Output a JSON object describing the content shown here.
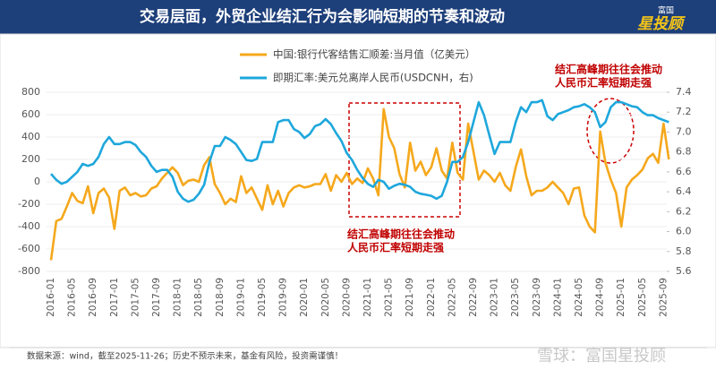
{
  "header": {
    "title": "交易层面，外贸企业结汇行为会影响短期的节奏和波动",
    "logo_top": "富国",
    "logo_main": "星投顾"
  },
  "chart_data": {
    "type": "line",
    "categories": [
      "2016-01",
      null,
      null,
      null,
      "2016-05",
      null,
      null,
      null,
      "2016-09",
      null,
      null,
      null,
      "2017-01",
      null,
      null,
      null,
      "2017-05",
      null,
      null,
      null,
      "2017-09",
      null,
      null,
      null,
      "2018-01",
      null,
      null,
      null,
      "2018-05",
      null,
      null,
      null,
      "2018-09",
      null,
      null,
      null,
      "2019-01",
      null,
      null,
      null,
      "2019-05",
      null,
      null,
      null,
      "2019-09",
      null,
      null,
      null,
      "2020-01",
      null,
      null,
      null,
      "2020-05",
      null,
      null,
      null,
      "2020-09",
      null,
      null,
      null,
      "2021-01",
      null,
      null,
      null,
      "2021-05",
      null,
      null,
      null,
      "2021-09",
      null,
      null,
      null,
      "2022-01",
      null,
      null,
      null,
      "2022-05",
      null,
      null,
      null,
      "2022-09",
      null,
      null,
      null,
      "2023-01",
      null,
      null,
      null,
      "2023-05",
      null,
      null,
      null,
      "2023-09",
      null,
      null,
      null,
      "2024-01",
      null,
      null,
      null,
      "2024-05",
      null,
      null,
      null,
      "2024-09",
      null,
      null,
      null,
      "2025-01",
      null,
      null,
      null,
      "2025-05",
      null,
      null,
      null,
      "2025-09",
      null
    ],
    "series": [
      {
        "name": "中国:银行代客结售汇顺差:当月值（亿美元）",
        "color": "#f5a81c",
        "axis": "y",
        "values": [
          -700,
          -350,
          -330,
          -220,
          -100,
          -170,
          -190,
          -40,
          -280,
          -100,
          -60,
          -140,
          -420,
          -80,
          -50,
          -120,
          -100,
          -130,
          -120,
          -60,
          -40,
          30,
          80,
          130,
          80,
          -30,
          10,
          20,
          0,
          150,
          220,
          -20,
          -100,
          -200,
          -150,
          -180,
          50,
          -100,
          -50,
          -150,
          -250,
          -30,
          -200,
          -80,
          -220,
          -100,
          -50,
          -30,
          -50,
          -40,
          -20,
          -20,
          70,
          -80,
          60,
          0,
          80,
          -20,
          30,
          -10,
          120,
          30,
          -120,
          650,
          400,
          300,
          70,
          -50,
          350,
          100,
          180,
          60,
          130,
          300,
          100,
          30,
          350,
          80,
          20,
          520,
          270,
          20,
          100,
          60,
          0,
          80,
          -30,
          -80,
          130,
          290,
          50,
          -120,
          -80,
          -80,
          -50,
          0,
          -50,
          -100,
          -200,
          -60,
          -50,
          -300,
          -400,
          -450,
          450,
          170,
          20,
          -100,
          -400,
          -50,
          20,
          60,
          110,
          210,
          250,
          170,
          520,
          200
        ]
      },
      {
        "name": "即期汇率:美元兑离岸人民币(USDCNH，右)",
        "color": "#1ea7dc",
        "axis": "y2",
        "values": [
          6.58,
          6.52,
          6.48,
          6.5,
          6.55,
          6.6,
          6.68,
          6.66,
          6.68,
          6.75,
          6.88,
          6.95,
          6.88,
          6.88,
          6.9,
          6.9,
          6.87,
          6.8,
          6.75,
          6.66,
          6.6,
          6.62,
          6.62,
          6.55,
          6.4,
          6.33,
          6.3,
          6.32,
          6.38,
          6.47,
          6.7,
          6.86,
          6.86,
          6.95,
          6.92,
          6.88,
          6.8,
          6.72,
          6.71,
          6.73,
          6.9,
          6.9,
          6.9,
          7.1,
          7.12,
          7.12,
          7.03,
          7,
          6.94,
          6.98,
          7.06,
          7.08,
          7.13,
          7.08,
          6.99,
          6.91,
          6.79,
          6.72,
          6.62,
          6.54,
          6.48,
          6.45,
          6.52,
          6.5,
          6.43,
          6.46,
          6.48,
          6.47,
          6.45,
          6.4,
          6.38,
          6.37,
          6.36,
          6.33,
          6.36,
          6.5,
          6.7,
          6.7,
          6.75,
          6.9,
          7.1,
          7.3,
          7.17,
          6.97,
          6.78,
          6.9,
          6.9,
          6.9,
          7.1,
          7.25,
          7.2,
          7.3,
          7.3,
          7.32,
          7.16,
          7.12,
          7.18,
          7.2,
          7.22,
          7.25,
          7.26,
          7.28,
          7.25,
          7.2,
          7.05,
          7.1,
          7.25,
          7.3,
          7.3,
          7.28,
          7.26,
          7.25,
          7.2,
          7.17,
          7.17,
          7.14,
          7.12,
          7.1
        ]
      }
    ],
    "ylim": [
      -800,
      800
    ],
    "yticks": [
      -800,
      -600,
      -400,
      -200,
      0,
      200,
      400,
      600,
      800
    ],
    "y2lim": [
      5.6,
      7.4
    ],
    "y2ticks": [
      5.6,
      5.8,
      {
        "value": 6,
        "label": "6.0"
      },
      6.2,
      6.4,
      6.6,
      6.8,
      {
        "value": 7,
        "label": "7.0"
      },
      7.2,
      7.4
    ],
    "grid": true,
    "annotations": [
      [
        "结汇高峰期往往会推动",
        "人民币汇率短期走强"
      ],
      [
        "结汇高峰期往往会推动",
        "人民币汇率短期走强"
      ]
    ],
    "source": "数据来源：wind，截至2025-11-26；历史不预示未来，基金有风险，投资需谨慎！",
    "watermark": "雪球：富国星投顾"
  }
}
